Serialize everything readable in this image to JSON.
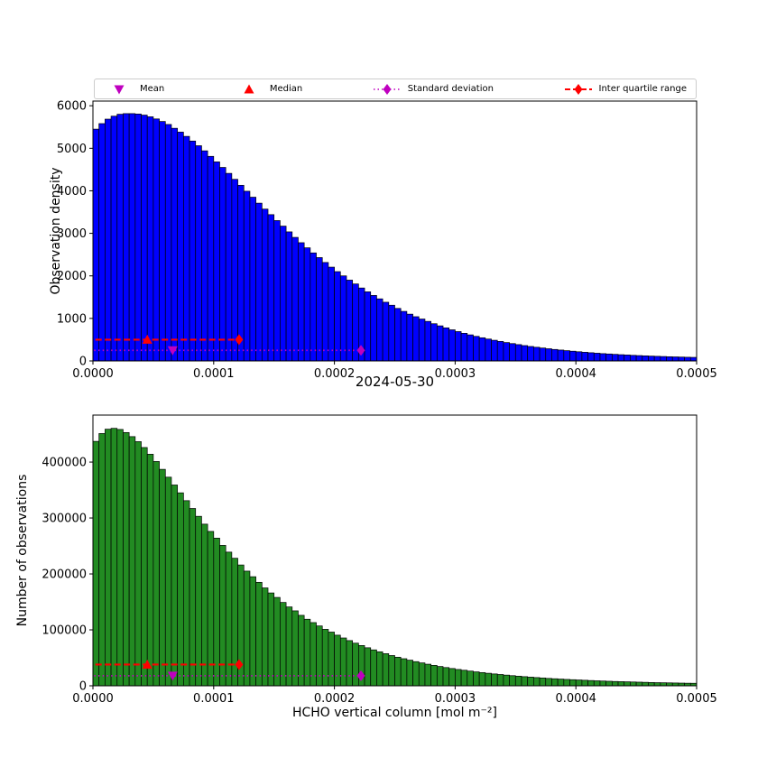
{
  "title": "2024-05-30",
  "legend": {
    "items": [
      {
        "label": "Mean",
        "marker": "triangle-down",
        "color": "#bf00bf"
      },
      {
        "label": "Median",
        "marker": "triangle-up",
        "color": "#ff0000"
      },
      {
        "label": "Standard deviation",
        "marker": "diamond-dotted-line",
        "color": "#bf00bf"
      },
      {
        "label": "Inter quartile range",
        "marker": "diamond-dashed-line",
        "color": "#ff0000"
      }
    ]
  },
  "chart_data": [
    {
      "type": "bar",
      "panel": "top",
      "ylabel": "Observation density",
      "bar_color": "#0000ff",
      "bar_edge_color": "#000000",
      "x_start": 0.0,
      "bin_width": 5e-06,
      "xlim": [
        0,
        0.0005
      ],
      "ylim": [
        0,
        6110
      ],
      "grid": false,
      "xticks": [
        0.0,
        0.0001,
        0.0002,
        0.0003,
        0.0004,
        0.0005
      ],
      "xtick_labels": [
        "0.0000",
        "0.0001",
        "0.0002",
        "0.0003",
        "0.0004",
        "0.0005"
      ],
      "yticks": [
        0,
        1000,
        2000,
        3000,
        4000,
        5000,
        6000
      ],
      "ytick_labels": [
        "0",
        "1000",
        "2000",
        "3000",
        "4000",
        "5000",
        "6000"
      ],
      "values": [
        5450,
        5580,
        5685,
        5755,
        5800,
        5815,
        5815,
        5805,
        5780,
        5740,
        5690,
        5630,
        5560,
        5470,
        5380,
        5280,
        5170,
        5060,
        4940,
        4810,
        4680,
        4550,
        4410,
        4270,
        4130,
        3990,
        3850,
        3710,
        3570,
        3440,
        3300,
        3170,
        3035,
        2905,
        2780,
        2660,
        2540,
        2430,
        2315,
        2205,
        2100,
        2000,
        1900,
        1810,
        1715,
        1625,
        1540,
        1460,
        1380,
        1310,
        1235,
        1165,
        1100,
        1040,
        985,
        930,
        875,
        825,
        778,
        732,
        690,
        650,
        613,
        578,
        545,
        515,
        486,
        459,
        432,
        408,
        384,
        361,
        340,
        322,
        304,
        287,
        270,
        256,
        242,
        229,
        216,
        204,
        193,
        182,
        172,
        164,
        155,
        147,
        140,
        132,
        126,
        120,
        114,
        109,
        104,
        99,
        95,
        91,
        87,
        84
      ],
      "markers": {
        "mean": {
          "shape": "triangle-down",
          "x": 6.6e-05,
          "y": 250,
          "color": "#bf00bf"
        },
        "median": {
          "shape": "triangle-up",
          "x": 4.5e-05,
          "y": 500,
          "color": "#ff0000"
        },
        "std": {
          "style": "dotted",
          "x0": 1e-06,
          "x1": 0.000222,
          "y": 250,
          "diamond_x": 0.000222,
          "color": "#bf00bf"
        },
        "iqr": {
          "style": "dashed",
          "x0": 2e-06,
          "x1": 0.000121,
          "y": 500,
          "diamond_x": 0.000121,
          "color": "#ff0000"
        }
      }
    },
    {
      "type": "bar",
      "panel": "bottom",
      "ylabel": "Number of observations",
      "xlabel": "HCHO vertical column [mol m⁻²]",
      "bar_color": "#228b22",
      "bar_edge_color": "#000000",
      "x_start": 0.0,
      "bin_width": 5e-06,
      "xlim": [
        0,
        0.0005
      ],
      "ylim": [
        0,
        484000
      ],
      "grid": false,
      "xticks": [
        0.0,
        0.0001,
        0.0002,
        0.0003,
        0.0004,
        0.0005
      ],
      "xtick_labels": [
        "0.0000",
        "0.0001",
        "0.0002",
        "0.0003",
        "0.0004",
        "0.0005"
      ],
      "yticks": [
        0,
        100000,
        200000,
        300000,
        400000
      ],
      "ytick_labels": [
        "0",
        "100000",
        "200000",
        "300000",
        "400000"
      ],
      "values": [
        437000,
        451000,
        458800,
        460300,
        458300,
        452800,
        445500,
        436500,
        426000,
        414000,
        401000,
        387000,
        373000,
        359000,
        345000,
        331000,
        317000,
        303000,
        289000,
        276000,
        264000,
        251000,
        239000,
        228000,
        216000,
        205000,
        195000,
        185000,
        175000,
        166000,
        158000,
        149000,
        141000,
        134000,
        126000,
        119000,
        113000,
        107000,
        101000,
        96000,
        90500,
        85500,
        80800,
        76200,
        72000,
        68000,
        64200,
        60800,
        57400,
        54100,
        51100,
        48400,
        45800,
        43200,
        40900,
        38600,
        36500,
        34500,
        32600,
        30900,
        29200,
        27800,
        26300,
        24900,
        23600,
        22400,
        21200,
        20200,
        19100,
        18100,
        17200,
        16300,
        15500,
        14700,
        14000,
        13200,
        12600,
        12000,
        11400,
        10900,
        10400,
        9900,
        9400,
        8900,
        8500,
        8100,
        7700,
        7400,
        7100,
        6800,
        6500,
        6200,
        5900,
        5600,
        5400,
        5200,
        5000,
        4800,
        4600,
        4500
      ],
      "markers": {
        "mean": {
          "shape": "triangle-down",
          "x": 6.6e-05,
          "y": 18000,
          "color": "#bf00bf"
        },
        "median": {
          "shape": "triangle-up",
          "x": 4.5e-05,
          "y": 38000,
          "color": "#ff0000"
        },
        "std": {
          "style": "dotted",
          "x0": 1e-06,
          "x1": 0.000222,
          "y": 18000,
          "diamond_x": 0.000222,
          "color": "#bf00bf"
        },
        "iqr": {
          "style": "dashed",
          "x0": 2e-06,
          "x1": 0.000121,
          "y": 38000,
          "diamond_x": 0.000121,
          "color": "#ff0000"
        }
      }
    }
  ]
}
